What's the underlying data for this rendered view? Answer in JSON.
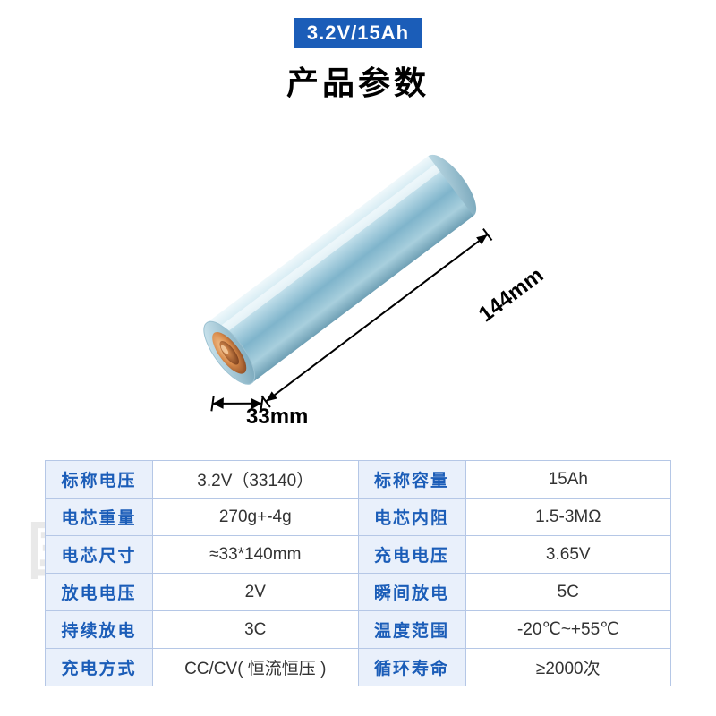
{
  "badge": "3.2V/15Ah",
  "title": "产品参数",
  "dimensions": {
    "length": "144mm",
    "diameter": "33mm"
  },
  "battery_render": {
    "body_color_light": "#c9e4ee",
    "body_color_dark": "#6fa9c1",
    "body_highlight": "#ffffff",
    "cap_outer": "#d88a4a",
    "cap_inner": "#a35a2a",
    "cap_highlight": "#f2b37a",
    "dim_line_color": "#000000",
    "rotation_deg": -37
  },
  "spec_rows": [
    {
      "l1": "标称电压",
      "v1": "3.2V（33140）",
      "l2": "标称容量",
      "v2": "15Ah"
    },
    {
      "l1": "电芯重量",
      "v1": "270g+-4g",
      "l2": "电芯内阻",
      "v2": "1.5-3MΩ"
    },
    {
      "l1": "电芯尺寸",
      "v1": "≈33*140mm",
      "l2": "充电电压",
      "v2": "3.65V"
    },
    {
      "l1": "放电电压",
      "v1": "2V",
      "l2": "瞬间放电",
      "v2": "5C"
    },
    {
      "l1": "持续放电",
      "v1": "3C",
      "l2": "温度范围",
      "v2": "-20℃~+55℃"
    },
    {
      "l1": "充电方式",
      "v1": "CC/CV( 恒流恒压 )",
      "l2": "循环寿命",
      "v2": "≥2000次"
    }
  ],
  "table_style": {
    "border_color": "#b5c7e6",
    "label_bg": "#e9f0fb",
    "label_color": "#1b5db8",
    "value_bg": "#ffffff",
    "value_color": "#333333",
    "font_size_pt": 14
  },
  "colors": {
    "badge_bg": "#1b5db8",
    "badge_fg": "#ffffff",
    "title": "#000000",
    "page_bg": "#ffffff"
  }
}
